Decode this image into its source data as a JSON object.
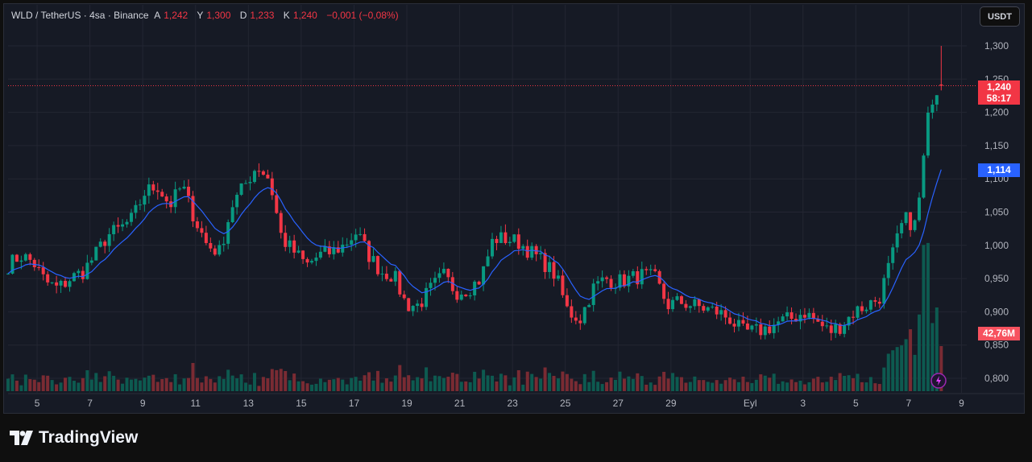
{
  "header": {
    "symbol": "WLD / TetherUS · 4sa · Binance",
    "o_label": "A",
    "o": "1,242",
    "h_label": "Y",
    "h": "1,300",
    "l_label": "D",
    "l": "1,233",
    "c_label": "K",
    "c": "1,240",
    "change": "−0,001 (−0,08%)"
  },
  "currency_button": "USDT",
  "brand": "TradingView",
  "price_tag": {
    "price": "1,240",
    "countdown": "58:17",
    "color": "#f23645"
  },
  "ma_tag": {
    "value": "1,114",
    "color": "#2962ff"
  },
  "volume_tag": {
    "value": "42,76M",
    "color": "#f7525f"
  },
  "chart_data": {
    "type": "candlestick",
    "title": "WLD / TetherUS · 4sa · Binance",
    "y_ticks": [
      "1,300",
      "1,250",
      "1,200",
      "1,150",
      "1,100",
      "1,050",
      "1,000",
      "0,950",
      "0,900",
      "0,850",
      "0,800"
    ],
    "ylim": [
      0.8,
      1.3
    ],
    "x_ticks": [
      {
        "t": 5,
        "label": "5"
      },
      {
        "t": 7,
        "label": "7"
      },
      {
        "t": 9,
        "label": "9"
      },
      {
        "t": 11,
        "label": "11"
      },
      {
        "t": 13,
        "label": "13"
      },
      {
        "t": 15,
        "label": "15"
      },
      {
        "t": 17,
        "label": "17"
      },
      {
        "t": 19,
        "label": "19"
      },
      {
        "t": 21,
        "label": "21"
      },
      {
        "t": 23,
        "label": "23"
      },
      {
        "t": 25,
        "label": "25"
      },
      {
        "t": 27,
        "label": "27"
      },
      {
        "t": 29,
        "label": "29"
      },
      {
        "t": 32,
        "label": "Eyl"
      },
      {
        "t": 34,
        "label": "3"
      },
      {
        "t": 36,
        "label": "5"
      },
      {
        "t": 38,
        "label": "7"
      },
      {
        "t": 40,
        "label": "9"
      }
    ],
    "xlim": [
      3.9,
      40.2
    ],
    "close_path": [
      0.97,
      0.985,
      0.975,
      0.945,
      0.935,
      0.95,
      0.96,
      0.985,
      1.015,
      1.025,
      1.04,
      1.08,
      1.09,
      1.06,
      1.09,
      1.04,
      1.0,
      0.99,
      1.06,
      1.09,
      1.12,
      1.1,
      1.01,
      0.99,
      0.97,
      0.985,
      0.99,
      1.0,
      1.02,
      0.985,
      0.96,
      0.955,
      0.91,
      0.91,
      0.935,
      0.955,
      0.93,
      0.935,
      0.95,
      1.01,
      1.01,
      1.005,
      0.99,
      0.975,
      0.955,
      0.9,
      0.89,
      0.935,
      0.95,
      0.945,
      0.95,
      0.955,
      0.95,
      0.91,
      0.915,
      0.91,
      0.905,
      0.9,
      0.89,
      0.87,
      0.87,
      0.875,
      0.885,
      0.89,
      0.9,
      0.885,
      0.87,
      0.88,
      0.9,
      0.91,
      0.92,
      0.98,
      1.04,
      1.03,
      1.2,
      1.24
    ],
    "path_t_range": [
      3.9,
      39.3
    ],
    "last_candle": {
      "open": 1.242,
      "high": 1.3,
      "low": 1.233,
      "close": 1.24
    },
    "ma_last": 1.114,
    "volume_last": "42,76M",
    "colors": {
      "up": "#089981",
      "down": "#f23645",
      "ma": "#2962ff"
    }
  }
}
